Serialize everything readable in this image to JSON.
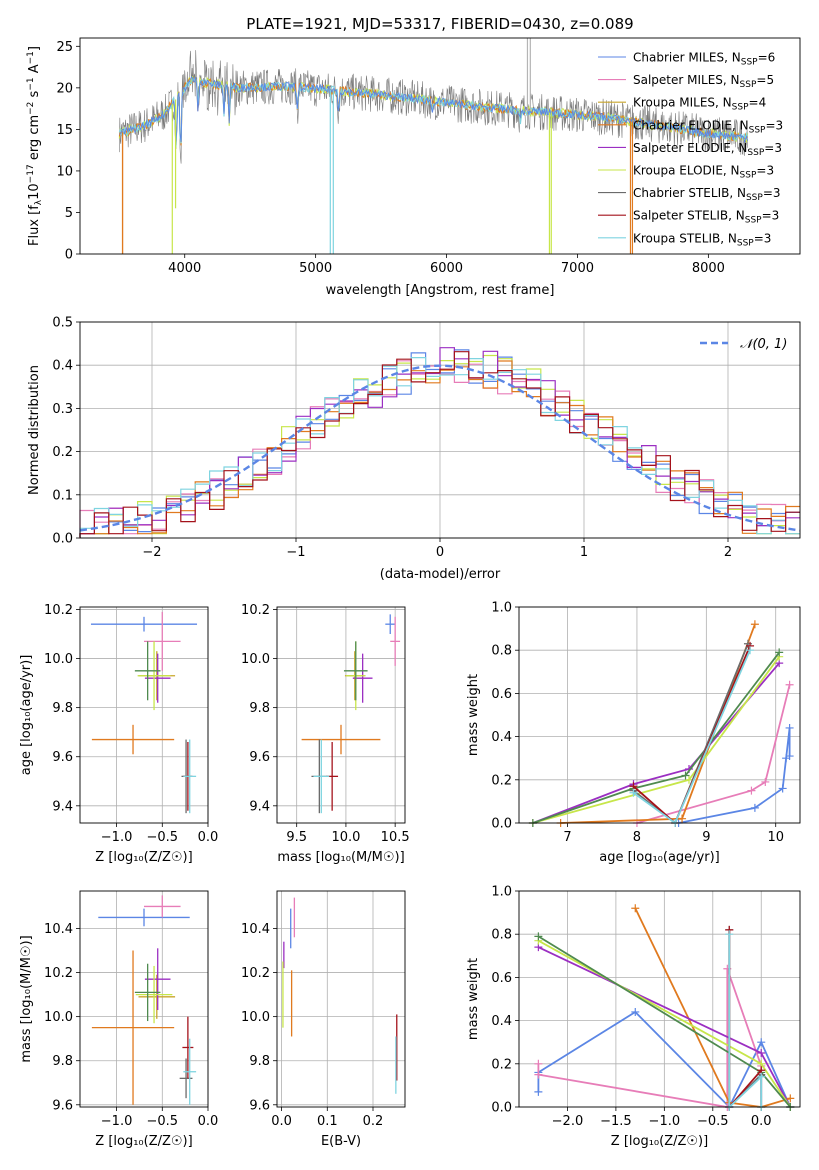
{
  "colors": {
    "chabrier_miles": "#5b86e5",
    "salpeter_miles": "#e77db8",
    "kroupa_miles": "#c9a52c",
    "chabrier_elodie": "#e07a1f",
    "salpeter_elodie": "#9b2fc2",
    "kroupa_elodie": "#c7e64a",
    "chabrier_stelib": "#6b6b6b",
    "salpeter_stelib": "#a4121b",
    "kroupa_stelib": "#7fd4e0",
    "green_mw": "#4f8a4f"
  },
  "chart_data": [
    {
      "id": "spectrum",
      "type": "line",
      "title": "PLATE=1921, MJD=53317, FIBERID=0430, z=0.089",
      "xlabel": "wavelength [Angstrom, rest frame]",
      "ylabel_main": "Flux [f",
      "ylabel_sub1": "λ",
      "ylabel_mid": "10",
      "ylabel_sup1": "−17",
      "ylabel_mid2": " erg cm",
      "ylabel_sup2": "−2",
      "ylabel_mid3": " s",
      "ylabel_sup3": "−1",
      "ylabel_mid4": " A",
      "ylabel_sup4": "−1",
      "ylabel_end": "]",
      "xlim": [
        3200,
        8700
      ],
      "ylim": [
        0,
        26
      ],
      "xticks": [
        4000,
        5000,
        6000,
        7000,
        8000
      ],
      "yticks": [
        0,
        5,
        10,
        15,
        20,
        25
      ],
      "legend": [
        {
          "label": "Chabrier MILES, N",
          "sub": "SSP",
          "suffix": "=6"
        },
        {
          "label": "Salpeter MILES, N",
          "sub": "SSP",
          "suffix": "=5"
        },
        {
          "label": "Kroupa MILES, N",
          "sub": "SSP",
          "suffix": "=4"
        },
        {
          "label": "Chabrier ELODIE, N",
          "sub": "SSP",
          "suffix": "=3"
        },
        {
          "label": "Salpeter ELODIE, N",
          "sub": "SSP",
          "suffix": "=3"
        },
        {
          "label": "Kroupa ELODIE, N",
          "sub": "SSP",
          "suffix": "=3"
        },
        {
          "label": "Chabrier STELIB, N",
          "sub": "SSP",
          "suffix": "=3"
        },
        {
          "label": "Salpeter STELIB, N",
          "sub": "SSP",
          "suffix": "=3"
        },
        {
          "label": "Kroupa STELIB, N",
          "sub": "SSP",
          "suffix": "=3"
        }
      ],
      "continuum": [
        [
          3500,
          14.5
        ],
        [
          3700,
          15.5
        ],
        [
          3850,
          17
        ],
        [
          3950,
          19
        ],
        [
          4050,
          21
        ],
        [
          4200,
          20.5
        ],
        [
          4400,
          20
        ],
        [
          4800,
          20.2
        ],
        [
          5200,
          19.6
        ],
        [
          5600,
          19
        ],
        [
          6000,
          18.2
        ],
        [
          6400,
          17.5
        ],
        [
          6800,
          17
        ],
        [
          7200,
          16.5
        ],
        [
          7600,
          15.5
        ],
        [
          8000,
          14.5
        ],
        [
          8300,
          14.0
        ]
      ],
      "absorption_lines": [
        [
          3934,
          12
        ],
        [
          3969,
          11
        ],
        [
          4102,
          17
        ],
        [
          4300,
          17
        ],
        [
          4340,
          16
        ],
        [
          4861,
          17
        ],
        [
          5175,
          17
        ],
        [
          5890,
          17
        ],
        [
          6563,
          16
        ]
      ],
      "spikes": [
        [
          3525,
          0
        ],
        [
          3525,
          0
        ],
        [
          3905,
          0
        ],
        [
          3930,
          5.5
        ],
        [
          5112,
          0
        ],
        [
          5135,
          0
        ],
        [
          6618,
          26
        ],
        [
          6640,
          26
        ],
        [
          6786,
          0
        ],
        [
          6800,
          0
        ],
        [
          7405,
          0
        ],
        [
          7420,
          0
        ]
      ]
    },
    {
      "id": "residuals",
      "type": "histogram",
      "xlabel": "(data-model)/error",
      "ylabel": "Normed distribution",
      "xlim": [
        -2.5,
        2.5
      ],
      "ylim": [
        0,
        0.5
      ],
      "xticks": [
        -2,
        -1,
        0,
        1,
        2
      ],
      "yticks": [
        0.0,
        0.1,
        0.2,
        0.3,
        0.4,
        0.5
      ],
      "legend": [
        {
          "label": "𝒩(0, 1)",
          "style": "dashed"
        }
      ],
      "bin_width": 0.1,
      "bin_start": -2.5
    },
    {
      "id": "age_vs_z",
      "type": "scatter",
      "xlabel": "Z [log₁₀(Z/Z☉)]",
      "ylabel": "age  [log₁₀(age/yr)]",
      "xlim": [
        -1.4,
        0.0
      ],
      "ylim": [
        9.33,
        10.21
      ],
      "xticks": [
        -1.0,
        -0.5,
        0.0
      ],
      "yticks": [
        9.4,
        9.6,
        9.8,
        10.0,
        10.2
      ],
      "points": [
        {
          "series": "chabrier_miles",
          "x": -0.7,
          "y": 10.14,
          "xerr": 0.58,
          "yerr": 0.03
        },
        {
          "series": "salpeter_miles",
          "x": -0.5,
          "y": 10.07,
          "xerr": 0.2,
          "yerr": 0.12
        },
        {
          "series": "kroupa_miles",
          "x": -0.56,
          "y": 9.93,
          "xerr": 0.2,
          "yerr": 0.1
        },
        {
          "series": "chabrier_elodie",
          "x": -0.82,
          "y": 9.67,
          "xerr": 0.45,
          "yerr": 0.06
        },
        {
          "series": "salpeter_elodie",
          "x": -0.55,
          "y": 9.92,
          "xerr": 0.14,
          "yerr": 0.1
        },
        {
          "series": "kroupa_elodie",
          "x": -0.59,
          "y": 9.93,
          "xerr": 0.18,
          "yerr": 0.14
        },
        {
          "series": "chabrier_stelib",
          "x": -0.24,
          "y": 9.52,
          "xerr": 0.05,
          "yerr": 0.15
        },
        {
          "series": "salpeter_stelib",
          "x": -0.22,
          "y": 9.52,
          "xerr": 0.05,
          "yerr": 0.14
        },
        {
          "series": "kroupa_stelib",
          "x": -0.2,
          "y": 9.52,
          "xerr": 0.07,
          "yerr": 0.15
        },
        {
          "series": "green_mw",
          "x": -0.66,
          "y": 9.95,
          "xerr": 0.14,
          "yerr": 0.12
        }
      ]
    },
    {
      "id": "age_vs_mass",
      "type": "scatter",
      "xlabel": "mass [log₁₀(M/M☉)]",
      "xlim": [
        9.3,
        10.6
      ],
      "ylim": [
        9.33,
        10.21
      ],
      "xticks": [
        9.5,
        10.0,
        10.5
      ],
      "yticks": [
        9.4,
        9.6,
        9.8,
        10.0,
        10.2
      ],
      "points": [
        {
          "series": "chabrier_miles",
          "x": 10.45,
          "y": 10.14,
          "xerr": 0.05,
          "yerr": 0.04
        },
        {
          "series": "salpeter_miles",
          "x": 10.5,
          "y": 10.07,
          "xerr": 0.05,
          "yerr": 0.1
        },
        {
          "series": "kroupa_miles",
          "x": 10.09,
          "y": 9.93,
          "xerr": 0.1,
          "yerr": 0.1
        },
        {
          "series": "chabrier_elodie",
          "x": 9.95,
          "y": 9.67,
          "xerr": 0.4,
          "yerr": 0.06
        },
        {
          "series": "salpeter_elodie",
          "x": 10.17,
          "y": 9.92,
          "xerr": 0.1,
          "yerr": 0.1
        },
        {
          "series": "kroupa_elodie",
          "x": 10.1,
          "y": 9.93,
          "xerr": 0.1,
          "yerr": 0.14
        },
        {
          "series": "chabrier_stelib",
          "x": 9.73,
          "y": 9.52,
          "xerr": 0.08,
          "yerr": 0.15
        },
        {
          "series": "salpeter_stelib",
          "x": 9.86,
          "y": 9.52,
          "xerr": 0.06,
          "yerr": 0.14
        },
        {
          "series": "kroupa_stelib",
          "x": 9.75,
          "y": 9.52,
          "xerr": 0.08,
          "yerr": 0.15
        },
        {
          "series": "green_mw",
          "x": 10.1,
          "y": 9.95,
          "xerr": 0.12,
          "yerr": 0.12
        }
      ]
    },
    {
      "id": "mw_vs_age",
      "type": "line",
      "xlabel": "age  [log₁₀(age/yr)]",
      "ylabel": "mass weight",
      "xlim": [
        6.3,
        10.35
      ],
      "ylim": [
        0,
        1.0
      ],
      "xticks": [
        7,
        8,
        9,
        10
      ],
      "yticks": [
        0.0,
        0.2,
        0.4,
        0.6,
        0.8,
        1.0
      ],
      "series": [
        {
          "key": "chabrier_miles",
          "x": [
            8.6,
            9.7,
            10.1,
            10.15,
            10.2,
            10.2
          ],
          "y": [
            0.0,
            0.07,
            0.16,
            0.3,
            0.44,
            0.31
          ]
        },
        {
          "key": "salpeter_miles",
          "x": [
            8.0,
            9.65,
            9.85,
            10.2
          ],
          "y": [
            0.0,
            0.15,
            0.19,
            0.64
          ]
        },
        {
          "key": "chabrier_elodie",
          "x": [
            6.9,
            8.65,
            9.7
          ],
          "y": [
            0.0,
            0.02,
            0.92
          ]
        },
        {
          "key": "salpeter_elodie",
          "x": [
            6.5,
            7.95,
            8.75,
            10.05
          ],
          "y": [
            0.0,
            0.18,
            0.25,
            0.74
          ]
        },
        {
          "key": "kroupa_elodie",
          "x": [
            6.5,
            8.75,
            10.05
          ],
          "y": [
            0.0,
            0.2,
            0.77
          ]
        },
        {
          "key": "green_mw",
          "x": [
            6.5,
            7.95,
            8.7,
            10.05
          ],
          "y": [
            0.0,
            0.16,
            0.22,
            0.79
          ]
        },
        {
          "key": "chabrier_stelib",
          "x": [
            7.95,
            8.55,
            9.6
          ],
          "y": [
            0.15,
            0.0,
            0.83
          ]
        },
        {
          "key": "salpeter_stelib",
          "x": [
            7.95,
            8.55,
            9.63
          ],
          "y": [
            0.17,
            0.0,
            0.82
          ]
        },
        {
          "key": "kroupa_stelib",
          "x": [
            7.95,
            8.55,
            9.63
          ],
          "y": [
            0.14,
            0.0,
            0.8
          ]
        }
      ]
    },
    {
      "id": "mass_vs_z",
      "type": "scatter",
      "xlabel": "Z [log₁₀(Z/Z☉)]",
      "ylabel": "mass [log₁₀(M/M☉)]",
      "xlim": [
        -1.4,
        0.0
      ],
      "ylim": [
        9.59,
        10.57
      ],
      "xticks": [
        -1.0,
        -0.5,
        0.0
      ],
      "yticks": [
        9.6,
        9.8,
        10.0,
        10.2,
        10.4
      ],
      "points": [
        {
          "series": "chabrier_miles",
          "x": -0.7,
          "y": 10.45,
          "xerr": 0.5,
          "yerr": 0.04
        },
        {
          "series": "salpeter_miles",
          "x": -0.5,
          "y": 10.5,
          "xerr": 0.2,
          "yerr": 0.05
        },
        {
          "series": "kroupa_miles",
          "x": -0.56,
          "y": 10.09,
          "xerr": 0.2,
          "yerr": 0.1
        },
        {
          "series": "chabrier_elodie",
          "x": -0.82,
          "y": 9.95,
          "xerr": 0.45,
          "yerr": 0.35
        },
        {
          "series": "salpeter_elodie",
          "x": -0.55,
          "y": 10.17,
          "xerr": 0.14,
          "yerr": 0.14
        },
        {
          "series": "kroupa_elodie",
          "x": -0.59,
          "y": 10.1,
          "xerr": 0.2,
          "yerr": 0.13
        },
        {
          "series": "chabrier_stelib",
          "x": -0.24,
          "y": 9.72,
          "xerr": 0.07,
          "yerr": 0.09
        },
        {
          "series": "salpeter_stelib",
          "x": -0.22,
          "y": 9.86,
          "xerr": 0.06,
          "yerr": 0.14
        },
        {
          "series": "kroupa_stelib",
          "x": -0.2,
          "y": 9.75,
          "xerr": 0.07,
          "yerr": 0.15
        },
        {
          "series": "green_mw",
          "x": -0.66,
          "y": 10.11,
          "xerr": 0.14,
          "yerr": 0.13
        }
      ]
    },
    {
      "id": "mass_vs_ebv",
      "type": "scatter",
      "xlabel": "E(B-V)",
      "xlim": [
        -0.01,
        0.27
      ],
      "ylim": [
        9.59,
        10.57
      ],
      "xticks": [
        0.0,
        0.1,
        0.2
      ],
      "yticks": [
        9.6,
        9.8,
        10.0,
        10.2,
        10.4
      ],
      "points": [
        {
          "series": "chabrier_miles",
          "x": 0.02,
          "y": 10.4,
          "xerr": 0,
          "yerr": 0.09
        },
        {
          "series": "salpeter_miles",
          "x": 0.028,
          "y": 10.45,
          "xerr": 0,
          "yerr": 0.09
        },
        {
          "series": "salpeter_elodie",
          "x": 0.005,
          "y": 10.28,
          "xerr": 0,
          "yerr": 0.06
        },
        {
          "series": "kroupa_elodie",
          "x": 0.003,
          "y": 10.1,
          "xerr": 0,
          "yerr": 0.15
        },
        {
          "series": "chabrier_elodie",
          "x": 0.022,
          "y": 10.06,
          "xerr": 0,
          "yerr": 0.15
        },
        {
          "series": "salpeter_stelib",
          "x": 0.252,
          "y": 9.86,
          "xerr": 0,
          "yerr": 0.15
        },
        {
          "series": "kroupa_stelib",
          "x": 0.25,
          "y": 9.78,
          "xerr": 0,
          "yerr": 0.13
        }
      ]
    },
    {
      "id": "mw_vs_z",
      "type": "line",
      "xlabel": "Z [log₁₀(Z/Z☉)]",
      "ylabel": "mass weight",
      "xlim": [
        -2.5,
        0.4
      ],
      "ylim": [
        0,
        1.0
      ],
      "xticks": [
        -2.0,
        -1.5,
        -1.0,
        -0.5,
        0.0
      ],
      "yticks": [
        0.0,
        0.2,
        0.4,
        0.6,
        0.8,
        1.0
      ],
      "series": [
        {
          "key": "chabrier_miles",
          "x": [
            -2.3,
            -2.3,
            -1.3,
            -0.33,
            -0.33,
            0.0,
            0.3,
            0.3
          ],
          "y": [
            0.07,
            0.16,
            0.44,
            0.0,
            0.0,
            0.3,
            0.0,
            0.0
          ]
        },
        {
          "key": "salpeter_miles",
          "x": [
            -2.3,
            -2.3,
            -0.35,
            -0.35,
            0.0,
            0.0
          ],
          "y": [
            0.2,
            0.15,
            0.0,
            0.64,
            0.19,
            0.0
          ]
        },
        {
          "key": "chabrier_elodie",
          "x": [
            -1.3,
            -0.33,
            0.0,
            0.3
          ],
          "y": [
            0.92,
            0.02,
            0.0,
            0.04
          ]
        },
        {
          "key": "salpeter_elodie",
          "x": [
            -2.3,
            0.0,
            0.3
          ],
          "y": [
            0.74,
            0.25,
            0.0
          ]
        },
        {
          "key": "kroupa_elodie",
          "x": [
            -2.3,
            0.0,
            0.3
          ],
          "y": [
            0.77,
            0.2,
            0.0
          ]
        },
        {
          "key": "green_mw",
          "x": [
            -2.3,
            0.0,
            0.3
          ],
          "y": [
            0.79,
            0.16,
            0.0
          ]
        },
        {
          "key": "chabrier_stelib",
          "x": [
            -0.33,
            -0.33,
            0.0,
            0.0
          ],
          "y": [
            0.82,
            0.0,
            0.15,
            0.0
          ]
        },
        {
          "key": "salpeter_stelib",
          "x": [
            -0.33,
            -0.33,
            0.0
          ],
          "y": [
            0.82,
            0.0,
            0.17
          ]
        },
        {
          "key": "kroupa_stelib",
          "x": [
            -0.33,
            -0.33,
            0.0,
            0.0
          ],
          "y": [
            0.8,
            0.0,
            0.14,
            0.0
          ]
        }
      ]
    }
  ]
}
